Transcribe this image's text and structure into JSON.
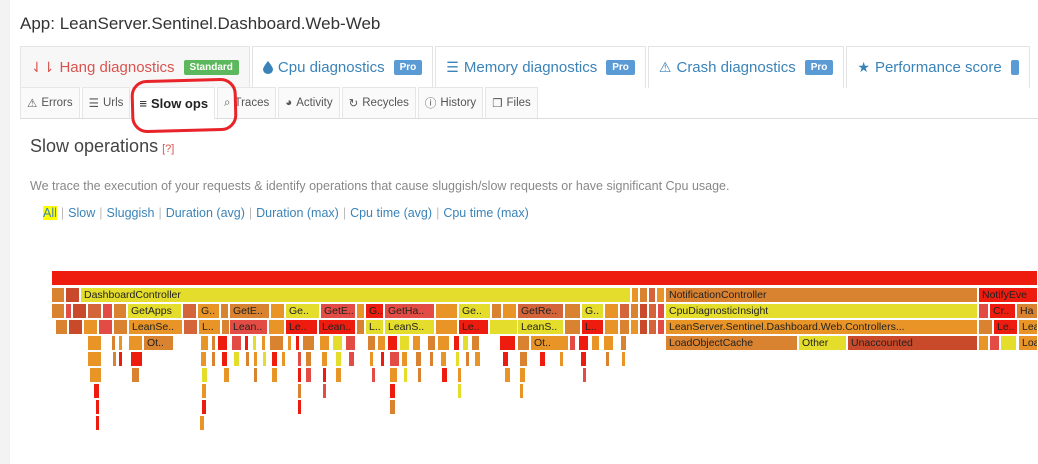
{
  "app": {
    "title": "App: LeanServer.Sentinel.Dashboard.Web-Web"
  },
  "main_tabs": [
    {
      "icon": "sort-down-icon",
      "label": "Hang diagnostics",
      "badge": "Standard"
    },
    {
      "icon": "droplet-icon",
      "label": "Cpu diagnostics",
      "badge": "Pro"
    },
    {
      "icon": "list-icon",
      "label": "Memory diagnostics",
      "badge": "Pro"
    },
    {
      "icon": "warning-icon",
      "label": "Crash diagnostics",
      "badge": "Pro"
    },
    {
      "icon": "star-icon",
      "label": "Performance score",
      "badge": ""
    }
  ],
  "sub_tabs": [
    {
      "icon": "warning-icon",
      "label": "Errors"
    },
    {
      "icon": "list-icon",
      "label": "Urls"
    },
    {
      "icon": "align-left-icon",
      "label": "Slow ops"
    },
    {
      "icon": "search-icon",
      "label": "Traces"
    },
    {
      "icon": "pie-chart-icon",
      "label": "Activity"
    },
    {
      "icon": "refresh-icon",
      "label": "Recycles"
    },
    {
      "icon": "info-icon",
      "label": "History"
    },
    {
      "icon": "files-icon",
      "label": "Files"
    }
  ],
  "section": {
    "title": "Slow operations",
    "help": "[?]",
    "description": "We trace the execution of your requests & identify operations that cause sluggish/slow requests or have significant Cpu usage."
  },
  "filters": [
    "All",
    "Slow",
    "Sluggish",
    "Duration (avg)",
    "Duration (max)",
    "Cpu time (avg)",
    "Cpu time (max)"
  ],
  "flame_labels": {
    "dashboard_controller": "DashboardController",
    "notification_controller": "NotificationController",
    "notify_event": "NotifyEve",
    "get_apps": "GetApps",
    "g1": "G..",
    "gete": "GetE..",
    "ge": "Ge..",
    "gete2": "GetE..",
    "g2": "G..",
    "gethang": "GetHa..",
    "ge2": "Ge..",
    "getre": "GetRe..",
    "g3": "G..",
    "cpu_insight": "CpuDiagnosticInsight",
    "cr": "Cr..",
    "ha": "Ha",
    "leanse": "LeanSe..",
    "l1": "L..",
    "lean1": "Lean..",
    "le1": "Le..",
    "lean2": "Lean..",
    "l2": "L..",
    "leans": "LeanS..",
    "le2": "Le..",
    "leans2": "LeanS..",
    "l3": "L..",
    "controllers": "LeanServer.Sentinel.Dashboard.Web.Controllers...",
    "le3": "Le..",
    "lea": "Lea",
    "ot1": "Ot..",
    "ot2": "Ot..",
    "load_cache": "LoadObjectCache",
    "other": "Other",
    "unaccounted": "Unaccounted",
    "loa": "Loa"
  },
  "colors": {
    "link": "#3a83b8",
    "danger": "#d9534f",
    "annotation": "#e8232a",
    "highlight": "#ffff00"
  }
}
